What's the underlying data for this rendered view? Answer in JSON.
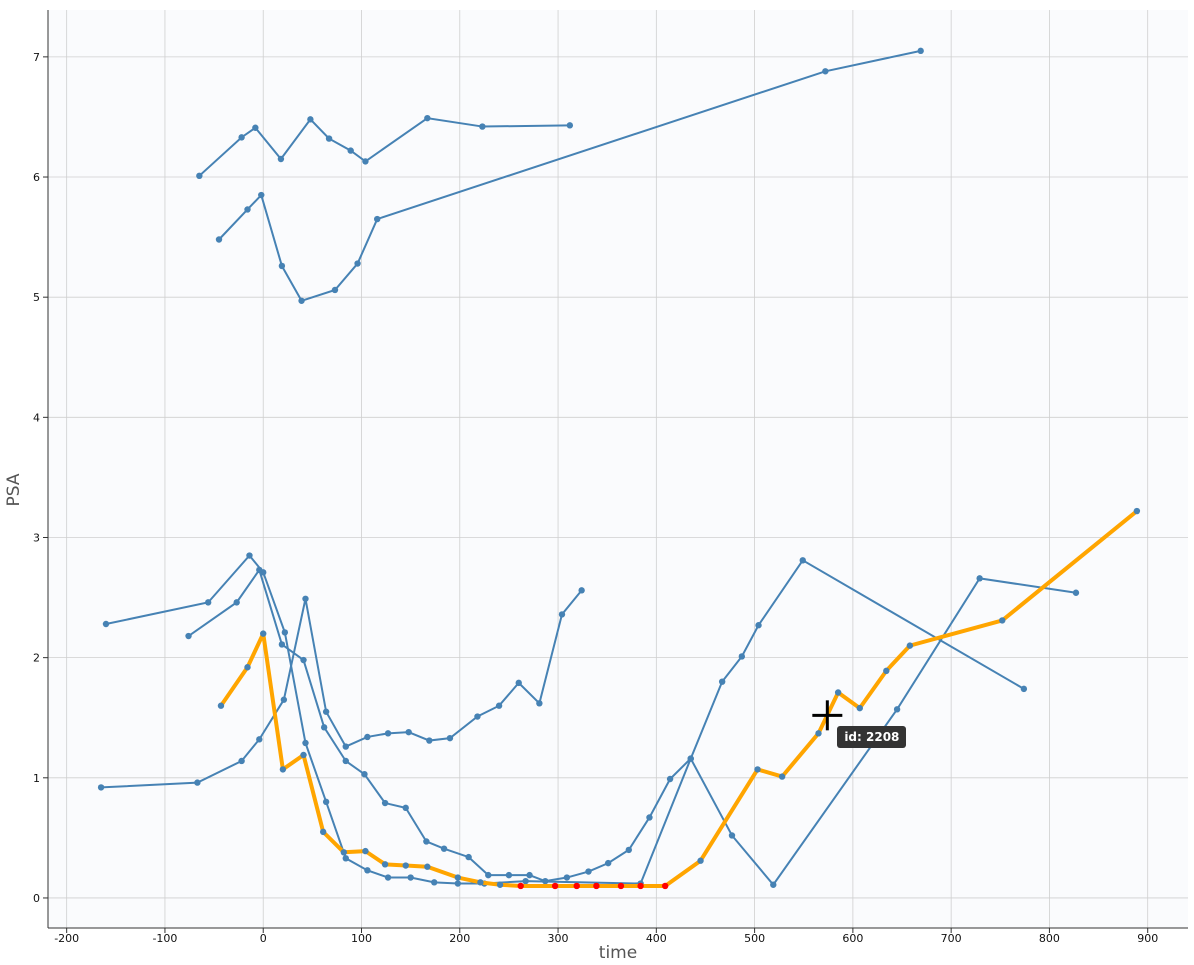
{
  "chart_data": {
    "type": "line",
    "title": "",
    "xlabel": "time",
    "ylabel": "PSA",
    "xlim": [
      -219,
      941
    ],
    "ylim": [
      -0.25,
      7.39
    ],
    "x_ticks": [
      -200,
      -100,
      0,
      100,
      200,
      300,
      400,
      500,
      600,
      700,
      800,
      900
    ],
    "y_ticks": [
      0,
      1,
      2,
      3,
      4,
      5,
      6,
      7
    ],
    "grid": true,
    "colors": {
      "series": "#4682b4",
      "highlight": "#ffa500",
      "flagged_point": "#ff0000",
      "background": "#fafbfd",
      "grid": "#cfcfcf"
    },
    "series": [
      {
        "x": [
          -65,
          -22,
          -8,
          18,
          48,
          67,
          89,
          104,
          167,
          223,
          312
        ],
        "y": [
          6.01,
          6.33,
          6.41,
          6.15,
          6.48,
          6.32,
          6.22,
          6.13,
          6.49,
          6.42,
          6.43
        ]
      },
      {
        "x": [
          -45,
          -16,
          -2,
          19,
          39,
          73,
          96,
          116,
          572,
          669
        ],
        "y": [
          5.48,
          5.73,
          5.85,
          5.26,
          4.97,
          5.06,
          5.28,
          5.65,
          6.88,
          7.05
        ]
      },
      {
        "x": [
          -160,
          -56,
          -14,
          0,
          22,
          43,
          64,
          84,
          106,
          127,
          150,
          174,
          198,
          225,
          267,
          384,
          435,
          467,
          487,
          504,
          549,
          774
        ],
        "y": [
          2.28,
          2.46,
          2.85,
          2.71,
          2.21,
          1.29,
          0.8,
          0.33,
          0.23,
          0.17,
          0.17,
          0.13,
          0.12,
          0.12,
          0.14,
          0.12,
          1.16,
          1.8,
          2.01,
          2.27,
          2.81,
          1.74
        ]
      },
      {
        "x": [
          -76,
          -27,
          -4,
          19,
          41,
          62,
          84,
          103,
          124,
          145,
          166,
          184,
          209,
          229,
          250,
          271,
          287,
          309,
          331,
          351,
          372,
          393,
          414,
          435,
          477,
          519,
          645,
          729,
          827
        ],
        "y": [
          2.18,
          2.46,
          2.73,
          2.11,
          1.98,
          1.42,
          1.14,
          1.03,
          0.79,
          0.75,
          0.47,
          0.41,
          0.34,
          0.19,
          0.19,
          0.19,
          0.14,
          0.17,
          0.22,
          0.29,
          0.4,
          0.67,
          0.99,
          1.16,
          0.52,
          0.11,
          1.57,
          2.66,
          2.54
        ]
      },
      {
        "x": [
          -165,
          -67,
          -22,
          -4,
          21,
          43,
          64,
          84,
          106,
          127,
          148,
          169,
          190,
          218,
          240,
          260,
          281,
          304,
          324
        ],
        "y": [
          0.92,
          0.96,
          1.14,
          1.32,
          1.65,
          2.49,
          1.55,
          1.26,
          1.34,
          1.37,
          1.38,
          1.31,
          1.33,
          1.51,
          1.6,
          1.79,
          1.62,
          2.36,
          2.56
        ]
      }
    ],
    "highlighted_series": {
      "id_label": "id: 2208",
      "x": [
        -43,
        -16,
        0,
        20,
        41,
        61,
        82,
        104,
        124,
        145,
        167,
        198,
        221,
        241,
        262,
        297,
        319,
        339,
        364,
        384,
        409,
        445,
        503,
        528,
        565,
        585,
        607,
        634,
        658,
        752,
        889
      ],
      "y": [
        1.6,
        1.92,
        2.2,
        1.07,
        1.19,
        0.55,
        0.38,
        0.39,
        0.28,
        0.27,
        0.26,
        0.17,
        0.13,
        0.11,
        0.1,
        0.1,
        0.1,
        0.1,
        0.1,
        0.1,
        0.1,
        0.31,
        1.07,
        1.01,
        1.37,
        1.71,
        1.58,
        1.89,
        2.1,
        2.31,
        3.22
      ],
      "red_point_indices": [
        14,
        15,
        16,
        17,
        18,
        19,
        20
      ]
    },
    "hover": {
      "x": 574,
      "y": 1.52
    }
  }
}
